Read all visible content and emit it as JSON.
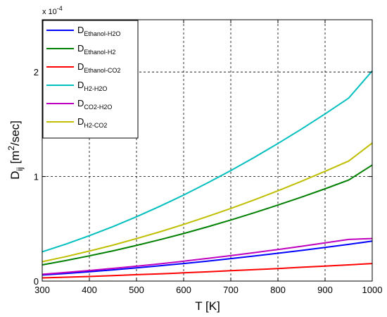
{
  "chart_data": {
    "type": "line",
    "xlabel": "T [K]",
    "ylabel": {
      "base": "D",
      "sub": "ij",
      "unit_open": " [m",
      "unit_sup": "2",
      "unit_close": "/sec]"
    },
    "y_multiplier": {
      "prefix": "x 10",
      "exponent": "-4"
    },
    "xlim": [
      300,
      1000
    ],
    "ylim": [
      0,
      0.00025
    ],
    "x_ticks": [
      300,
      400,
      500,
      600,
      700,
      800,
      900,
      1000
    ],
    "y_ticks": [
      {
        "value": 0,
        "label": "0"
      },
      {
        "value": 0.0001,
        "label": "1"
      },
      {
        "value": 0.0002,
        "label": "2"
      }
    ],
    "grid": true,
    "legend_position": "top-left",
    "x": [
      300,
      350,
      400,
      450,
      500,
      550,
      600,
      650,
      700,
      750,
      800,
      850,
      900,
      950,
      1000
    ],
    "series": [
      {
        "base": "D",
        "sub": "Ethanol-H2O",
        "color": "#0000ff",
        "values": [
          5.8e-06,
          7.3e-06,
          8.9e-06,
          1.07e-05,
          1.26e-05,
          1.46e-05,
          1.68e-05,
          1.91e-05,
          2.15e-05,
          2.4e-05,
          2.66e-05,
          2.93e-05,
          3.22e-05,
          3.51e-05,
          3.82e-05
        ]
      },
      {
        "base": "D",
        "sub": "Ethanol-H2",
        "color": "#008000",
        "values": [
          1.55e-05,
          1.96e-05,
          2.41e-05,
          2.89e-05,
          3.41e-05,
          3.96e-05,
          4.55e-05,
          5.18e-05,
          5.84e-05,
          6.54e-05,
          7.27e-05,
          8.03e-05,
          8.83e-05,
          9.66e-05,
          0.000111
        ]
      },
      {
        "base": "D",
        "sub": "Ethanol-CO2",
        "color": "#ff0000",
        "values": [
          3e-06,
          3.7e-06,
          4.4e-06,
          5.2e-06,
          6.1e-06,
          6.9e-06,
          7.9e-06,
          8.8e-06,
          9.9e-06,
          1.09e-05,
          1.2e-05,
          1.32e-05,
          1.43e-05,
          1.55e-05,
          1.68e-05
        ]
      },
      {
        "base": "D",
        "sub": "H2-H2O",
        "color": "#00bfbf",
        "values": [
          2.8e-05,
          3.53e-05,
          4.34e-05,
          5.21e-05,
          6.15e-05,
          7.16e-05,
          8.23e-05,
          9.37e-05,
          0.0001057,
          0.0001183,
          0.0001316,
          0.0001454,
          0.0001599,
          0.000175,
          0.000201
        ]
      },
      {
        "base": "D",
        "sub": "CO2-H2O",
        "color": "#bf00bf",
        "values": [
          6.5e-06,
          8.2e-06,
          1.01e-05,
          1.21e-05,
          1.42e-05,
          1.65e-05,
          1.9e-05,
          2.16e-05,
          2.43e-05,
          2.72e-05,
          3.02e-05,
          3.33e-05,
          3.65e-05,
          3.98e-05,
          4.07e-05
        ]
      },
      {
        "base": "D",
        "sub": "H2-CO2",
        "color": "#bfbf00",
        "values": [
          1.85e-05,
          2.34e-05,
          2.87e-05,
          3.44e-05,
          4.06e-05,
          4.72e-05,
          5.42e-05,
          6.17e-05,
          6.95e-05,
          7.77e-05,
          8.64e-05,
          9.55e-05,
          0.000105,
          0.0001148,
          0.000132
        ]
      }
    ]
  }
}
